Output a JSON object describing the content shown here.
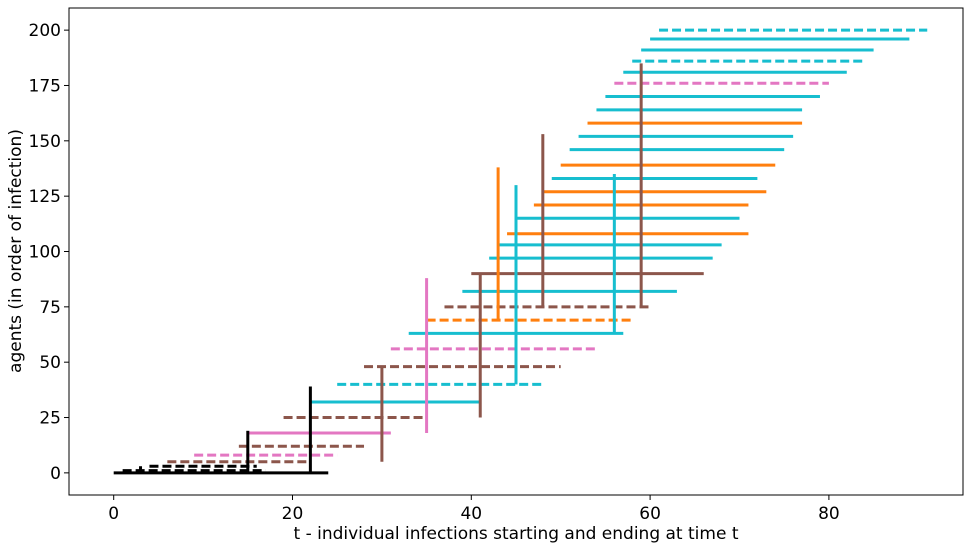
{
  "chart_data": {
    "type": "line",
    "title": "",
    "xlabel": "t - individual infections starting and ending at time t",
    "ylabel": "agents (in order of infection)",
    "xlim": [
      -5,
      95
    ],
    "ylim": [
      -10,
      210
    ],
    "xticks": [
      0,
      20,
      40,
      60,
      80
    ],
    "yticks": [
      0,
      25,
      50,
      75,
      100,
      125,
      150,
      175,
      200
    ],
    "grid": false,
    "legend": "none",
    "colors": {
      "root": "#000000",
      "brown": "#8c564b",
      "pink": "#e377c2",
      "cyan": "#17becf",
      "orange": "#ff7f0e"
    },
    "infection_spans": [
      {
        "agent": 0,
        "start": 0.0,
        "end": 24.0,
        "color": "root",
        "style": "solid"
      },
      {
        "agent": 1,
        "start": 1.0,
        "end": 17.0,
        "color": "root",
        "style": "dashed"
      },
      {
        "agent": 3,
        "start": 4.0,
        "end": 16.0,
        "color": "root",
        "style": "dashed"
      },
      {
        "agent": 5,
        "start": 6.0,
        "end": 22.0,
        "color": "brown",
        "style": "dashed"
      },
      {
        "agent": 8,
        "start": 9.0,
        "end": 25.0,
        "color": "pink",
        "style": "dashed"
      },
      {
        "agent": 12,
        "start": 14.0,
        "end": 28.0,
        "color": "brown",
        "style": "dashed"
      },
      {
        "agent": 18,
        "start": 15.0,
        "end": 31.0,
        "color": "pink",
        "style": "solid"
      },
      {
        "agent": 25,
        "start": 19.0,
        "end": 35.0,
        "color": "brown",
        "style": "dashed"
      },
      {
        "agent": 32,
        "start": 22.0,
        "end": 41.0,
        "color": "cyan",
        "style": "solid"
      },
      {
        "agent": 40,
        "start": 25.0,
        "end": 48.0,
        "color": "cyan",
        "style": "dashed"
      },
      {
        "agent": 48,
        "start": 28.0,
        "end": 50.0,
        "color": "brown",
        "style": "dashed"
      },
      {
        "agent": 56,
        "start": 31.0,
        "end": 54.0,
        "color": "pink",
        "style": "dashed"
      },
      {
        "agent": 63,
        "start": 33.0,
        "end": 57.0,
        "color": "cyan",
        "style": "solid"
      },
      {
        "agent": 69,
        "start": 35.0,
        "end": 58.0,
        "color": "orange",
        "style": "dashed"
      },
      {
        "agent": 75,
        "start": 37.0,
        "end": 60.0,
        "color": "brown",
        "style": "dashed"
      },
      {
        "agent": 82,
        "start": 39.0,
        "end": 63.0,
        "color": "cyan",
        "style": "solid"
      },
      {
        "agent": 90,
        "start": 40.0,
        "end": 66.0,
        "color": "brown",
        "style": "solid"
      },
      {
        "agent": 97,
        "start": 42.0,
        "end": 67.0,
        "color": "cyan",
        "style": "solid"
      },
      {
        "agent": 103,
        "start": 43.0,
        "end": 68.0,
        "color": "cyan",
        "style": "solid"
      },
      {
        "agent": 108,
        "start": 44.0,
        "end": 71.0,
        "color": "orange",
        "style": "solid"
      },
      {
        "agent": 115,
        "start": 45.0,
        "end": 70.0,
        "color": "cyan",
        "style": "solid"
      },
      {
        "agent": 121,
        "start": 47.0,
        "end": 71.0,
        "color": "orange",
        "style": "solid"
      },
      {
        "agent": 127,
        "start": 48.0,
        "end": 73.0,
        "color": "orange",
        "style": "solid"
      },
      {
        "agent": 133,
        "start": 49.0,
        "end": 72.0,
        "color": "cyan",
        "style": "solid"
      },
      {
        "agent": 139,
        "start": 50.0,
        "end": 74.0,
        "color": "orange",
        "style": "solid"
      },
      {
        "agent": 146,
        "start": 51.0,
        "end": 75.0,
        "color": "cyan",
        "style": "solid"
      },
      {
        "agent": 152,
        "start": 52.0,
        "end": 76.0,
        "color": "cyan",
        "style": "solid"
      },
      {
        "agent": 158,
        "start": 53.0,
        "end": 77.0,
        "color": "orange",
        "style": "solid"
      },
      {
        "agent": 164,
        "start": 54.0,
        "end": 77.0,
        "color": "cyan",
        "style": "solid"
      },
      {
        "agent": 170,
        "start": 55.0,
        "end": 79.0,
        "color": "cyan",
        "style": "solid"
      },
      {
        "agent": 176,
        "start": 56.0,
        "end": 80.0,
        "color": "pink",
        "style": "dashed"
      },
      {
        "agent": 181,
        "start": 57.0,
        "end": 82.0,
        "color": "cyan",
        "style": "solid"
      },
      {
        "agent": 186,
        "start": 58.0,
        "end": 84.0,
        "color": "cyan",
        "style": "dashed"
      },
      {
        "agent": 191,
        "start": 59.0,
        "end": 85.0,
        "color": "cyan",
        "style": "solid"
      },
      {
        "agent": 196,
        "start": 60.0,
        "end": 89.0,
        "color": "cyan",
        "style": "solid"
      },
      {
        "agent": 200,
        "start": 61.0,
        "end": 91.0,
        "color": "cyan",
        "style": "dashed"
      }
    ],
    "transmission_links": [
      {
        "t": 3.0,
        "from_agent": 0,
        "to_agent": 3,
        "color": "root"
      },
      {
        "t": 15.0,
        "from_agent": 0,
        "to_agent": 19,
        "color": "root"
      },
      {
        "t": 22.0,
        "from_agent": 0,
        "to_agent": 39,
        "color": "root"
      },
      {
        "t": 30.0,
        "from_agent": 5,
        "to_agent": 48,
        "color": "brown"
      },
      {
        "t": 35.0,
        "from_agent": 18,
        "to_agent": 88,
        "color": "pink"
      },
      {
        "t": 41.0,
        "from_agent": 25,
        "to_agent": 90,
        "color": "brown"
      },
      {
        "t": 43.0,
        "from_agent": 69,
        "to_agent": 138,
        "color": "orange"
      },
      {
        "t": 45.0,
        "from_agent": 40,
        "to_agent": 130,
        "color": "cyan"
      },
      {
        "t": 48.0,
        "from_agent": 75,
        "to_agent": 153,
        "color": "brown"
      },
      {
        "t": 56.0,
        "from_agent": 63,
        "to_agent": 135,
        "color": "cyan"
      },
      {
        "t": 59.0,
        "from_agent": 75,
        "to_agent": 185,
        "color": "brown"
      }
    ]
  }
}
